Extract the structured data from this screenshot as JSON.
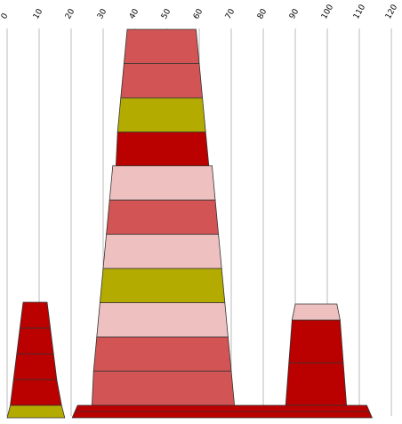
{
  "chart_data": {
    "type": "bar",
    "title": "",
    "xlabel": "",
    "ylabel": "",
    "xlim": [
      0,
      120
    ],
    "x_ticks": [
      "0",
      "10",
      "20",
      "30",
      "40",
      "50",
      "60",
      "70",
      "80",
      "90",
      "100",
      "110",
      "120"
    ],
    "grid": true,
    "base": {
      "x_from": 22,
      "x_to": 114
    },
    "stacks": [
      {
        "name": "",
        "segments": [
          {
            "color": "#b3ab00",
            "bottom_left": 0,
            "bottom_right": 18,
            "top_left": 1,
            "top_right": 17
          },
          {
            "color": "#bb0000",
            "bottom_left": 1,
            "bottom_right": 17,
            "top_left": 2,
            "top_right": 15.5
          },
          {
            "color": "#bb0000",
            "bottom_left": 2,
            "bottom_right": 15.5,
            "top_left": 3,
            "top_right": 14.5
          },
          {
            "color": "#bb0000",
            "bottom_left": 3,
            "bottom_right": 14.5,
            "top_left": 4,
            "top_right": 13.5
          },
          {
            "color": "#bb0000",
            "bottom_left": 4,
            "bottom_right": 13.5,
            "top_left": 5,
            "top_right": 12.5
          }
        ]
      },
      {
        "name": "",
        "segments": [
          {
            "color": "#d25454",
            "bottom_left": 26.5,
            "bottom_right": 71,
            "top_left": 27,
            "top_right": 70
          },
          {
            "color": "#d25454",
            "bottom_left": 27,
            "bottom_right": 70,
            "top_left": 28,
            "top_right": 69
          },
          {
            "color": "#efc0c0",
            "bottom_left": 28,
            "bottom_right": 69,
            "top_left": 29,
            "top_right": 68
          },
          {
            "color": "#b3ab00",
            "bottom_left": 29,
            "bottom_right": 68,
            "top_left": 30,
            "top_right": 67
          },
          {
            "color": "#efc0c0",
            "bottom_left": 30,
            "bottom_right": 67,
            "top_left": 31,
            "top_right": 66
          },
          {
            "color": "#d25454",
            "bottom_left": 31,
            "bottom_right": 66,
            "top_left": 32,
            "top_right": 65
          },
          {
            "color": "#efc0c0",
            "bottom_left": 32,
            "bottom_right": 65,
            "top_left": 33,
            "top_right": 64
          },
          {
            "color": "#bb0000",
            "bottom_left": 34,
            "bottom_right": 63,
            "top_left": 34.5,
            "top_right": 62
          },
          {
            "color": "#b3ab00",
            "bottom_left": 34.5,
            "bottom_right": 62,
            "top_left": 35.5,
            "top_right": 61
          },
          {
            "color": "#d25454",
            "bottom_left": 35.5,
            "bottom_right": 61,
            "top_left": 36.5,
            "top_right": 60
          },
          {
            "color": "#d25454",
            "bottom_left": 36.5,
            "bottom_right": 60,
            "top_left": 37.5,
            "top_right": 59
          }
        ]
      },
      {
        "name": "",
        "segments": [
          {
            "color": "#bb0000",
            "bottom_left": 87,
            "bottom_right": 106,
            "top_left": 88,
            "top_right": 105
          },
          {
            "color": "#bb0000",
            "bottom_left": 88,
            "bottom_right": 105,
            "top_left": 89,
            "top_right": 104
          },
          {
            "color": "#efc0c0",
            "bottom_left": 89,
            "bottom_right": 104,
            "top_left": 90,
            "top_right": 103
          }
        ]
      }
    ]
  },
  "colors": {
    "grid": "#bbbbbb",
    "segment_border": "#333333",
    "base_fill": "#bb0000"
  }
}
